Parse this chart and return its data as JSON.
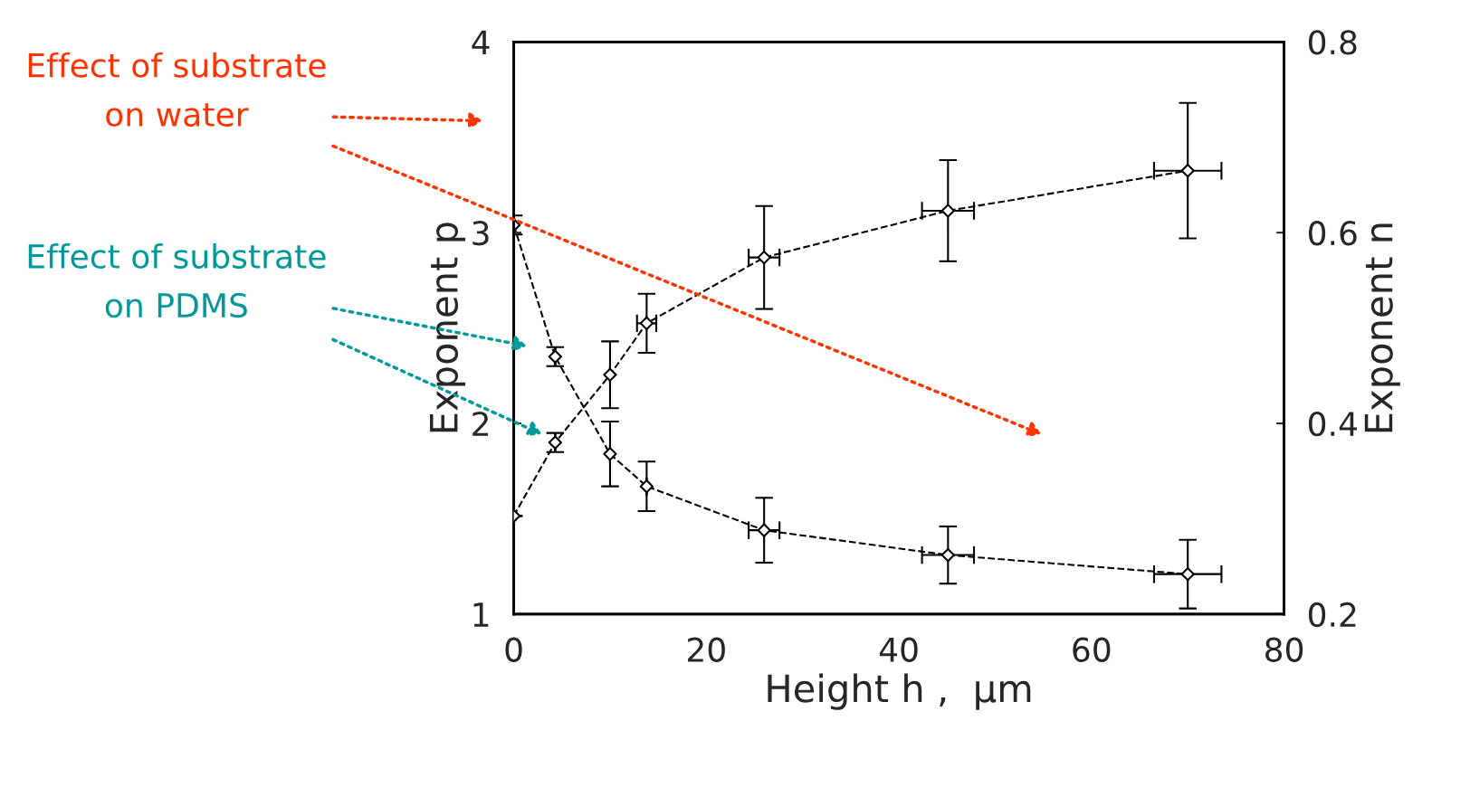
{
  "chart_data": {
    "type": "line",
    "xlabel": "Height h ,  μm",
    "ylabel": "Exponent p",
    "y2label": "Exponent n",
    "xlim": [
      0,
      80
    ],
    "xticks": [
      0,
      20,
      40,
      60,
      80
    ],
    "ylim": [
      1,
      4
    ],
    "yticks": [
      1,
      2,
      3,
      4
    ],
    "y2lim": [
      0.2,
      0.8
    ],
    "y2ticks": [
      0.2,
      0.4,
      0.6,
      0.8
    ],
    "grid": false,
    "marker": "diamond",
    "line_style": "dashed",
    "series": [
      {
        "color": "#000000",
        "x": [
          0,
          4.3,
          10.0,
          13.8,
          26.0,
          45.1,
          70.0
        ],
        "values": [
          3.04,
          2.35,
          1.84,
          1.67,
          1.44,
          1.31,
          1.21
        ],
        "errors": [
          0.05,
          0.05,
          0.17,
          0.13,
          0.17,
          0.15,
          0.18
        ],
        "xerrors": [
          null,
          null,
          null,
          null,
          1.6,
          2.7,
          3.5
        ]
      },
      {
        "color": "#000000",
        "axis": "y2",
        "x": [
          0,
          4.3,
          10.0,
          13.8,
          26.0,
          45.1,
          70.0
        ],
        "values": [
          0.303,
          0.38,
          0.451,
          0.505,
          0.574,
          0.623,
          0.665
        ],
        "errors": [
          null,
          0.01,
          0.035,
          0.031,
          0.054,
          0.053,
          0.071
        ],
        "xerrors": [
          null,
          null,
          null,
          1.0,
          1.6,
          2.7,
          3.5
        ]
      }
    ],
    "annotations": [
      "Effect of substrate\non water",
      "Effect of substrate\non PDMS"
    ]
  }
}
